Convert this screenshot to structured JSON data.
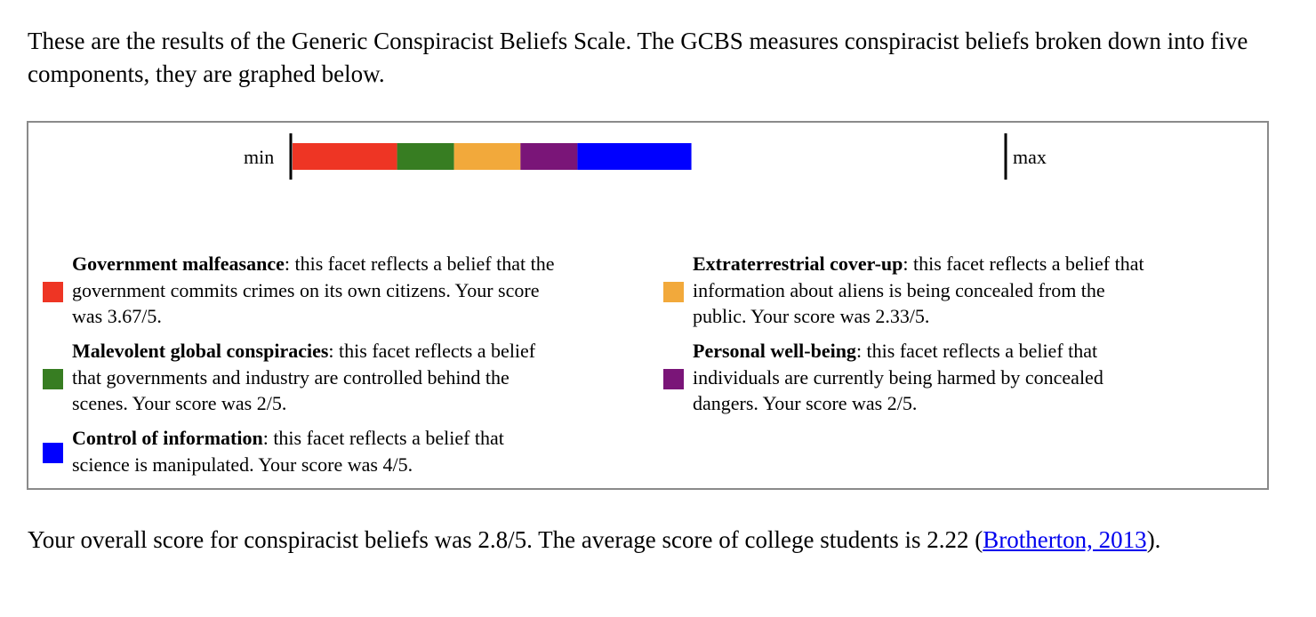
{
  "intro_text": "These are the results of the Generic Conspiracist Beliefs Scale. The GCBS measures conspiracist beliefs broken down into five components, they are graphed below.",
  "chart_data": {
    "type": "bar",
    "orientation": "horizontal-stacked",
    "min_label": "min",
    "max_label": "max",
    "scale_max_total": 25,
    "series": [
      {
        "key": "government",
        "value": 3.67,
        "max": 5,
        "color": "#ee3524"
      },
      {
        "key": "malevolent",
        "value": 2,
        "max": 5,
        "color": "#377d22"
      },
      {
        "key": "extraterrestrial",
        "value": 2.33,
        "max": 5,
        "color": "#f2a93b"
      },
      {
        "key": "wellbeing",
        "value": 2,
        "max": 5,
        "color": "#7a1578"
      },
      {
        "key": "control",
        "value": 4,
        "max": 5,
        "color": "#0000ff"
      }
    ]
  },
  "legend": {
    "government": {
      "title": "Government malfeasance",
      "line1_rest": ": this facet reflects a belief that the",
      "line2": "government commits crimes on its own citizens. Your score",
      "line3": "was 3.67/5.",
      "color": "#ee3524"
    },
    "malevolent": {
      "title": "Malevolent global conspiracies",
      "line1_rest": ": this facet reflects a belief",
      "line2": "that governments and industry are controlled behind the",
      "line3": "scenes. Your score was 2/5.",
      "color": "#377d22"
    },
    "control": {
      "title": "Control of information",
      "line1_rest": ": this facet reflects a belief that",
      "line2": "science is manipulated. Your score was 4/5.",
      "color": "#0000ff"
    },
    "extraterrestrial": {
      "title": "Extraterrestrial cover-up",
      "line1_rest": ": this facet reflects a belief that",
      "line2": "information about aliens is being concealed from the",
      "line3": "public. Your score was 2.33/5.",
      "color": "#f2a93b"
    },
    "wellbeing": {
      "title": "Personal well-being",
      "line1_rest": ": this facet reflects a belief that",
      "line2": "individuals are currently being harmed by concealed",
      "line3": "dangers. Your score was 2/5.",
      "color": "#7a1578"
    }
  },
  "outro": {
    "text_before": "Your overall score for conspiracist beliefs was 2.8/5. The average score of college students is 2.22 (",
    "link_text": "Brotherton, 2013",
    "text_after": ")."
  }
}
